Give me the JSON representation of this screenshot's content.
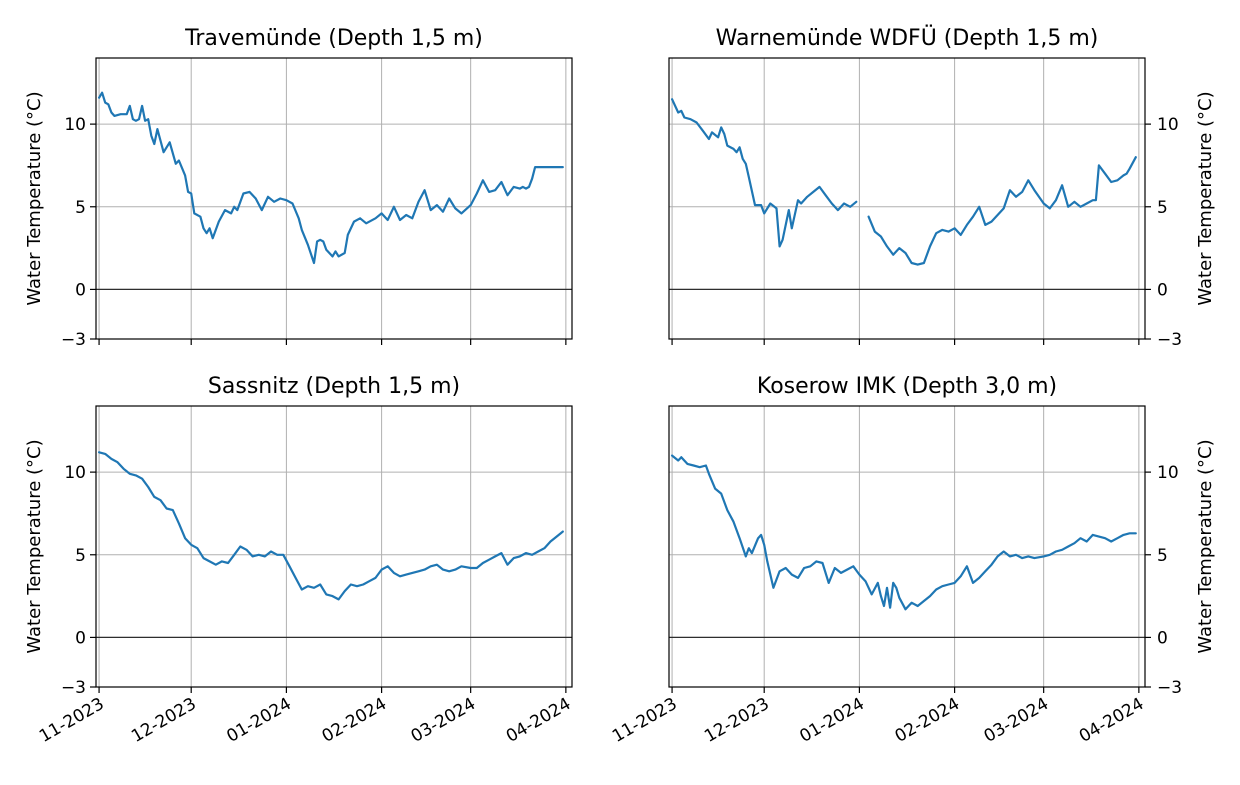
{
  "chart_data": [
    {
      "type": "line",
      "title": "Travemünde  (Depth 1,5 m)",
      "ylabel": "Water Temperature (°C)",
      "xlabel": "",
      "y_axis_side": "left",
      "ylim": [
        -3,
        14
      ],
      "yticks": [
        -3,
        0,
        5,
        10
      ],
      "xlim": [
        "2023-10-31",
        "2024-04-03"
      ],
      "xticks": [
        "2023-11-01",
        "2023-12-01",
        "2024-01-01",
        "2024-02-01",
        "2024-03-01",
        "2024-04-01"
      ],
      "xtick_labels": [],
      "grid": true,
      "series": [
        {
          "x": [
            "2023-11-01",
            "2023-11-02",
            "2023-11-03",
            "2023-11-04",
            "2023-11-05",
            "2023-11-06",
            "2023-11-08",
            "2023-11-10",
            "2023-11-11",
            "2023-11-12",
            "2023-11-13",
            "2023-11-14",
            "2023-11-15",
            "2023-11-16",
            "2023-11-17",
            "2023-11-18",
            "2023-11-19",
            "2023-11-20",
            "2023-11-21",
            "2023-11-22",
            "2023-11-24",
            "2023-11-26",
            "2023-11-27",
            "2023-11-29",
            "2023-11-30",
            "2023-12-01",
            "2023-12-02",
            "2023-12-04",
            "2023-12-05",
            "2023-12-06",
            "2023-12-07",
            "2023-12-08",
            "2023-12-10",
            "2023-12-12",
            "2023-12-14",
            "2023-12-15",
            "2023-12-16",
            "2023-12-18",
            "2023-12-20",
            "2023-12-22",
            "2023-12-24",
            "2023-12-26",
            "2023-12-28",
            "2023-12-30",
            "2024-01-01",
            "2024-01-03",
            "2024-01-05",
            "2024-01-06",
            "2024-01-08",
            "2024-01-10",
            "2024-01-11",
            "2024-01-12",
            "2024-01-13",
            "2024-01-14",
            "2024-01-16",
            "2024-01-17",
            "2024-01-18",
            "2024-01-20",
            "2024-01-21",
            "2024-01-23",
            "2024-01-25",
            "2024-01-27",
            "2024-01-30",
            "2024-02-01",
            "2024-02-03",
            "2024-02-05",
            "2024-02-07",
            "2024-02-09",
            "2024-02-11",
            "2024-02-13",
            "2024-02-15",
            "2024-02-17",
            "2024-02-19",
            "2024-02-21",
            "2024-02-23",
            "2024-02-25",
            "2024-02-27",
            "2024-03-01",
            "2024-03-03",
            "2024-03-05",
            "2024-03-07",
            "2024-03-09",
            "2024-03-11",
            "2024-03-13",
            "2024-03-15",
            "2024-03-17",
            "2024-03-18",
            "2024-03-19",
            "2024-03-20",
            "2024-03-21",
            "2024-03-22",
            "2024-03-24",
            "2024-03-26",
            "2024-03-28",
            "2024-03-30",
            "2024-03-31"
          ],
          "values": [
            11.6,
            11.9,
            11.3,
            11.2,
            10.7,
            10.5,
            10.6,
            10.6,
            11.1,
            10.3,
            10.2,
            10.3,
            11.1,
            10.2,
            10.3,
            9.3,
            8.8,
            9.7,
            9.0,
            8.3,
            8.9,
            7.6,
            7.8,
            6.9,
            5.9,
            5.8,
            4.6,
            4.4,
            3.7,
            3.4,
            3.7,
            3.1,
            4.1,
            4.8,
            4.6,
            5.0,
            4.8,
            5.8,
            5.9,
            5.5,
            4.8,
            5.6,
            5.3,
            5.5,
            5.4,
            5.2,
            4.3,
            3.6,
            2.7,
            1.6,
            2.9,
            3.0,
            2.9,
            2.4,
            2.0,
            2.3,
            2.0,
            2.2,
            3.3,
            4.1,
            4.3,
            4.0,
            4.3,
            4.6,
            4.2,
            5.0,
            4.2,
            4.5,
            4.3,
            5.3,
            6.0,
            4.8,
            5.1,
            4.7,
            5.5,
            4.9,
            4.6,
            5.1,
            5.8,
            6.6,
            5.9,
            6.0,
            6.5,
            5.7,
            6.2,
            6.1,
            6.2,
            6.1,
            6.2,
            6.7,
            7.4,
            7.4,
            7.4,
            7.4,
            7.4,
            7.4
          ]
        }
      ]
    },
    {
      "type": "line",
      "title": "Warnemünde WDFÜ (Depth 1,5 m)",
      "ylabel": "Water Temperature (°C)",
      "xlabel": "",
      "y_axis_side": "right",
      "ylim": [
        -3,
        14
      ],
      "yticks": [
        -3,
        0,
        5,
        10
      ],
      "xlim": [
        "2023-10-31",
        "2024-04-03"
      ],
      "xticks": [
        "2023-11-01",
        "2023-12-01",
        "2024-01-01",
        "2024-02-01",
        "2024-03-01",
        "2024-04-01"
      ],
      "xtick_labels": [],
      "grid": true,
      "series": [
        {
          "x": [
            "2023-11-01",
            "2023-11-03",
            "2023-11-04",
            "2023-11-05",
            "2023-11-07",
            "2023-11-09",
            "2023-11-11",
            "2023-11-13",
            "2023-11-14",
            "2023-11-16",
            "2023-11-17",
            "2023-11-18",
            "2023-11-19",
            "2023-11-21",
            "2023-11-22",
            "2023-11-23",
            "2023-11-24",
            "2023-11-25",
            "2023-11-26",
            "2023-11-28",
            "2023-11-30",
            "2023-12-01",
            "2023-12-03",
            "2023-12-05",
            "2023-12-06",
            "2023-12-07",
            "2023-12-09",
            "2023-12-10",
            "2023-12-12",
            "2023-12-13",
            "2023-12-15",
            "2023-12-17",
            "2023-12-19",
            "2023-12-21",
            "2023-12-23",
            "2023-12-25",
            "2023-12-27",
            "2023-12-29",
            "2023-12-31",
            null,
            "2024-01-04",
            "2024-01-06",
            "2024-01-08",
            "2024-01-10",
            "2024-01-12",
            "2024-01-14",
            "2024-01-16",
            "2024-01-18",
            "2024-01-20",
            "2024-01-22",
            "2024-01-24",
            "2024-01-26",
            "2024-01-28",
            "2024-01-30",
            "2024-02-01",
            "2024-02-03",
            "2024-02-05",
            "2024-02-07",
            "2024-02-09",
            "2024-02-11",
            "2024-02-13",
            "2024-02-15",
            "2024-02-17",
            "2024-02-19",
            "2024-02-21",
            "2024-02-23",
            "2024-02-25",
            "2024-02-27",
            "2024-03-01",
            "2024-03-03",
            "2024-03-05",
            "2024-03-07",
            "2024-03-09",
            "2024-03-11",
            "2024-03-13",
            "2024-03-15",
            "2024-03-17",
            "2024-03-18",
            "2024-03-19",
            "2024-03-21",
            "2024-03-23",
            "2024-03-25",
            "2024-03-27",
            "2024-03-28",
            "2024-03-29",
            "2024-03-31"
          ],
          "values": [
            11.5,
            10.7,
            10.8,
            10.4,
            10.3,
            10.1,
            9.6,
            9.1,
            9.5,
            9.2,
            9.8,
            9.4,
            8.7,
            8.5,
            8.3,
            8.6,
            7.9,
            7.6,
            6.8,
            5.1,
            5.1,
            4.6,
            5.2,
            4.9,
            2.6,
            3.0,
            4.8,
            3.7,
            5.4,
            5.2,
            5.6,
            5.9,
            6.2,
            5.7,
            5.2,
            4.8,
            5.2,
            5.0,
            5.3,
            null,
            4.4,
            3.5,
            3.2,
            2.6,
            2.1,
            2.5,
            2.2,
            1.6,
            1.5,
            1.6,
            2.6,
            3.4,
            3.6,
            3.5,
            3.7,
            3.3,
            3.9,
            4.4,
            5.0,
            3.9,
            4.1,
            4.5,
            4.9,
            6.0,
            5.6,
            5.9,
            6.6,
            6.0,
            5.2,
            4.9,
            5.4,
            6.3,
            5.0,
            5.3,
            5.0,
            5.2,
            5.4,
            5.4,
            7.5,
            7.0,
            6.5,
            6.6,
            6.9,
            7.0,
            7.3,
            8.0
          ]
        }
      ]
    },
    {
      "type": "line",
      "title": "Sassnitz  (Depth 1,5 m)",
      "ylabel": "Water Temperature (°C)",
      "xlabel": "",
      "y_axis_side": "left",
      "ylim": [
        -3,
        14
      ],
      "yticks": [
        -3,
        0,
        5,
        10
      ],
      "xlim": [
        "2023-10-31",
        "2024-04-03"
      ],
      "xticks": [
        "2023-11-01",
        "2023-12-01",
        "2024-01-01",
        "2024-02-01",
        "2024-03-01",
        "2024-04-01"
      ],
      "xtick_labels": [
        "11-2023",
        "12-2023",
        "01-2024",
        "02-2024",
        "03-2024",
        "04-2024"
      ],
      "grid": true,
      "series": [
        {
          "x": [
            "2023-11-01",
            "2023-11-03",
            "2023-11-05",
            "2023-11-07",
            "2023-11-09",
            "2023-11-11",
            "2023-11-13",
            "2023-11-15",
            "2023-11-17",
            "2023-11-19",
            "2023-11-21",
            "2023-11-23",
            "2023-11-25",
            "2023-11-27",
            "2023-11-29",
            "2023-12-01",
            "2023-12-03",
            "2023-12-05",
            "2023-12-07",
            "2023-12-09",
            "2023-12-11",
            "2023-12-13",
            "2023-12-15",
            "2023-12-17",
            "2023-12-19",
            "2023-12-21",
            "2023-12-23",
            "2023-12-25",
            "2023-12-27",
            "2023-12-29",
            "2023-12-31",
            "2024-01-02",
            "2024-01-04",
            "2024-01-06",
            "2024-01-08",
            "2024-01-10",
            "2024-01-12",
            "2024-01-14",
            "2024-01-16",
            "2024-01-18",
            "2024-01-20",
            "2024-01-22",
            "2024-01-24",
            "2024-01-26",
            "2024-01-28",
            "2024-01-30",
            "2024-02-01",
            "2024-02-03",
            "2024-02-05",
            "2024-02-07",
            "2024-02-09",
            "2024-02-11",
            "2024-02-13",
            "2024-02-15",
            "2024-02-17",
            "2024-02-19",
            "2024-02-21",
            "2024-02-23",
            "2024-02-25",
            "2024-02-27",
            "2024-03-01",
            "2024-03-03",
            "2024-03-05",
            "2024-03-07",
            "2024-03-09",
            "2024-03-11",
            "2024-03-13",
            "2024-03-15",
            "2024-03-17",
            "2024-03-19",
            "2024-03-21",
            "2024-03-23",
            "2024-03-25",
            "2024-03-27",
            "2024-03-29",
            "2024-03-31"
          ],
          "values": [
            11.2,
            11.1,
            10.8,
            10.6,
            10.2,
            9.9,
            9.8,
            9.6,
            9.1,
            8.5,
            8.3,
            7.8,
            7.7,
            6.9,
            6.0,
            5.6,
            5.4,
            4.8,
            4.6,
            4.4,
            4.6,
            4.5,
            5.0,
            5.5,
            5.3,
            4.9,
            5.0,
            4.9,
            5.2,
            5.0,
            5.0,
            4.3,
            3.6,
            2.9,
            3.1,
            3.0,
            3.2,
            2.6,
            2.5,
            2.3,
            2.8,
            3.2,
            3.1,
            3.2,
            3.4,
            3.6,
            4.1,
            4.3,
            3.9,
            3.7,
            3.8,
            3.9,
            4.0,
            4.1,
            4.3,
            4.4,
            4.1,
            4.0,
            4.1,
            4.3,
            4.2,
            4.2,
            4.5,
            4.7,
            4.9,
            5.1,
            4.4,
            4.8,
            4.9,
            5.1,
            5.0,
            5.2,
            5.4,
            5.8,
            6.1,
            6.4
          ]
        }
      ]
    },
    {
      "type": "line",
      "title": "Koserow IMK (Depth 3,0 m)",
      "ylabel": "Water Temperature (°C)",
      "xlabel": "",
      "y_axis_side": "right",
      "ylim": [
        -3,
        14
      ],
      "yticks": [
        -3,
        0,
        5,
        10
      ],
      "xlim": [
        "2023-10-31",
        "2024-04-03"
      ],
      "xticks": [
        "2023-11-01",
        "2023-12-01",
        "2024-01-01",
        "2024-02-01",
        "2024-03-01",
        "2024-04-01"
      ],
      "xtick_labels": [
        "11-2023",
        "12-2023",
        "01-2024",
        "02-2024",
        "03-2024",
        "04-2024"
      ],
      "grid": true,
      "series": [
        {
          "x": [
            "2023-11-01",
            "2023-11-03",
            "2023-11-04",
            "2023-11-06",
            "2023-11-08",
            "2023-11-10",
            "2023-11-12",
            "2023-11-13",
            "2023-11-15",
            "2023-11-17",
            "2023-11-19",
            "2023-11-21",
            "2023-11-23",
            "2023-11-25",
            "2023-11-26",
            "2023-11-27",
            "2023-11-29",
            "2023-11-30",
            "2023-12-01",
            "2023-12-02",
            "2023-12-04",
            "2023-12-06",
            "2023-12-08",
            "2023-12-10",
            "2023-12-12",
            "2023-12-14",
            "2023-12-16",
            "2023-12-18",
            "2023-12-20",
            "2023-12-22",
            "2023-12-24",
            "2023-12-26",
            "2023-12-28",
            "2023-12-30",
            "2024-01-01",
            "2024-01-03",
            "2024-01-05",
            "2024-01-07",
            "2024-01-08",
            "2024-01-09",
            "2024-01-10",
            "2024-01-11",
            "2024-01-12",
            "2024-01-13",
            "2024-01-14",
            "2024-01-16",
            "2024-01-18",
            "2024-01-20",
            "2024-01-22",
            "2024-01-24",
            "2024-01-26",
            "2024-01-28",
            "2024-01-30",
            "2024-02-01",
            "2024-02-03",
            "2024-02-05",
            "2024-02-07",
            "2024-02-09",
            "2024-02-11",
            "2024-02-13",
            "2024-02-15",
            "2024-02-17",
            "2024-02-19",
            "2024-02-21",
            "2024-02-23",
            "2024-02-25",
            "2024-02-27",
            "2024-03-01",
            "2024-03-03",
            "2024-03-05",
            "2024-03-07",
            "2024-03-09",
            "2024-03-11",
            "2024-03-13",
            "2024-03-15",
            "2024-03-17",
            "2024-03-19",
            "2024-03-21",
            "2024-03-23",
            "2024-03-25",
            "2024-03-27",
            "2024-03-29",
            "2024-03-31"
          ],
          "values": [
            11.0,
            10.7,
            10.9,
            10.5,
            10.4,
            10.3,
            10.4,
            9.9,
            9.0,
            8.7,
            7.7,
            7.0,
            6.0,
            4.9,
            5.4,
            5.1,
            6.0,
            6.2,
            5.6,
            4.6,
            3.0,
            4.0,
            4.2,
            3.8,
            3.6,
            4.2,
            4.3,
            4.6,
            4.5,
            3.3,
            4.2,
            3.9,
            4.1,
            4.3,
            3.8,
            3.4,
            2.6,
            3.3,
            2.5,
            1.9,
            3.0,
            1.8,
            3.3,
            3.0,
            2.4,
            1.7,
            2.1,
            1.9,
            2.2,
            2.5,
            2.9,
            3.1,
            3.2,
            3.3,
            3.7,
            4.3,
            3.3,
            3.6,
            4.0,
            4.4,
            4.9,
            5.2,
            4.9,
            5.0,
            4.8,
            4.9,
            4.8,
            4.9,
            5.0,
            5.2,
            5.3,
            5.5,
            5.7,
            6.0,
            5.8,
            6.2,
            6.1,
            6.0,
            5.8,
            6.0,
            6.2,
            6.3,
            6.3
          ]
        }
      ]
    }
  ]
}
